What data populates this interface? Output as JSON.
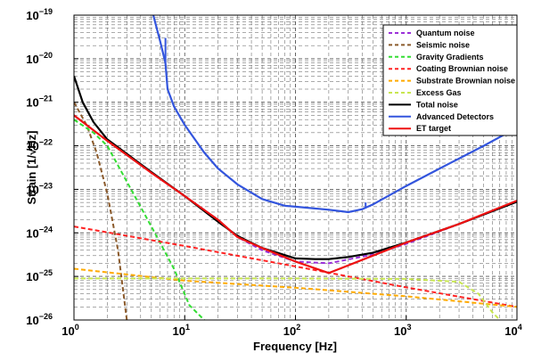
{
  "chart_data": {
    "type": "line",
    "title": "",
    "xlabel": "Frequency [Hz]",
    "ylabel": "Strain [1/√Hz]",
    "xscale": "log",
    "yscale": "log",
    "xlim": [
      1,
      10000
    ],
    "ylim": [
      1e-26,
      1e-19
    ],
    "grid": "major and minor, dashed",
    "legend_position": "top-right",
    "x_ticks": [
      {
        "base": "10",
        "exp": "0"
      },
      {
        "base": "10",
        "exp": "1"
      },
      {
        "base": "10",
        "exp": "2"
      },
      {
        "base": "10",
        "exp": "3"
      },
      {
        "base": "10",
        "exp": "4"
      }
    ],
    "y_ticks": [
      {
        "base": "10",
        "exp": "−26"
      },
      {
        "base": "10",
        "exp": "−25"
      },
      {
        "base": "10",
        "exp": "−24"
      },
      {
        "base": "10",
        "exp": "−23"
      },
      {
        "base": "10",
        "exp": "−22"
      },
      {
        "base": "10",
        "exp": "−21"
      },
      {
        "base": "10",
        "exp": "−20"
      },
      {
        "base": "10",
        "exp": "−19"
      }
    ],
    "series": [
      {
        "name": "Quantum noise",
        "color": "#9b30d9",
        "style": "dashed",
        "points": [
          [
            1,
            5e-22
          ],
          [
            2,
            1.3e-22
          ],
          [
            5,
            2.4e-23
          ],
          [
            10,
            7e-24
          ],
          [
            20,
            2e-24
          ],
          [
            30,
            8e-25
          ],
          [
            50,
            4e-25
          ],
          [
            100,
            2.2e-25
          ],
          [
            200,
            2e-25
          ],
          [
            500,
            3.2e-25
          ],
          [
            1000,
            5.6e-25
          ],
          [
            3000,
            1.6e-24
          ],
          [
            10000,
            5.2e-24
          ]
        ]
      },
      {
        "name": "Seismic noise",
        "color": "#8b5a2b",
        "style": "dashed",
        "points": [
          [
            1,
            1e-21
          ],
          [
            1.3,
            3e-22
          ],
          [
            1.6,
            7e-23
          ],
          [
            2,
            8e-24
          ],
          [
            2.5,
            4e-25
          ],
          [
            3,
            1e-26
          ]
        ]
      },
      {
        "name": "Gravity Gradients",
        "color": "#33dd33",
        "style": "dashed",
        "points": [
          [
            1,
            4e-22
          ],
          [
            1.5,
            2e-22
          ],
          [
            2,
            1e-22
          ],
          [
            3,
            1.5e-23
          ],
          [
            5,
            1.4e-24
          ],
          [
            8,
            1.5e-25
          ],
          [
            11,
            2.2e-26
          ],
          [
            15,
            1e-26
          ]
        ]
      },
      {
        "name": "Coating Brownian noise",
        "color": "#ff2222",
        "style": "dashed",
        "points": [
          [
            1,
            1.4e-24
          ],
          [
            10,
            5e-25
          ],
          [
            100,
            1.7e-25
          ],
          [
            1000,
            5.6e-26
          ],
          [
            10000,
            2e-26
          ]
        ]
      },
      {
        "name": "Substrate Brownian noise",
        "color": "#ffaa00",
        "style": "dashed",
        "points": [
          [
            1,
            1.5e-25
          ],
          [
            10,
            8e-26
          ],
          [
            100,
            5.5e-26
          ],
          [
            1000,
            3.5e-26
          ],
          [
            10000,
            2e-26
          ]
        ]
      },
      {
        "name": "Excess Gas",
        "color": "#c8e650",
        "style": "dashed",
        "points": [
          [
            1,
            9e-26
          ],
          [
            100,
            9e-26
          ],
          [
            1000,
            8.8e-26
          ],
          [
            3000,
            7.5e-26
          ],
          [
            4500,
            4e-26
          ],
          [
            6000,
            1.5e-26
          ],
          [
            7000,
            1e-26
          ]
        ]
      },
      {
        "name": "Total noise",
        "color": "#000000",
        "style": "solid",
        "points": [
          [
            1,
            4e-21
          ],
          [
            1.2,
            1e-21
          ],
          [
            1.5,
            3.5e-22
          ],
          [
            2,
            1.4e-22
          ],
          [
            5,
            2.5e-23
          ],
          [
            10,
            7e-24
          ],
          [
            20,
            1.8e-24
          ],
          [
            30,
            8.5e-25
          ],
          [
            50,
            4.5e-25
          ],
          [
            100,
            2.6e-25
          ],
          [
            150,
            2.5e-25
          ],
          [
            200,
            2.5e-25
          ],
          [
            300,
            2.8e-25
          ],
          [
            500,
            3.5e-25
          ],
          [
            1000,
            6e-25
          ],
          [
            3000,
            1.6e-24
          ],
          [
            10000,
            5.2e-24
          ]
        ]
      },
      {
        "name": "Advanced Detectors",
        "color": "#3355dd",
        "style": "solid",
        "points": [
          [
            5.2,
            1e-19
          ],
          [
            6,
            2.5e-20
          ],
          [
            6.7,
            8e-21
          ],
          [
            7,
            2e-21
          ],
          [
            8,
            8e-22
          ],
          [
            10,
            3e-22
          ],
          [
            15,
            7e-23
          ],
          [
            20,
            3e-23
          ],
          [
            30,
            1.3e-23
          ],
          [
            50,
            6e-24
          ],
          [
            80,
            4.2e-24
          ],
          [
            100,
            4e-24
          ],
          [
            200,
            3.4e-24
          ],
          [
            300,
            3e-24
          ],
          [
            400,
            3.5e-24
          ],
          [
            500,
            4.5e-24
          ],
          [
            1000,
            1.2e-23
          ],
          [
            2000,
            3e-23
          ],
          [
            5000,
            1e-22
          ],
          [
            10000,
            2.6e-22
          ]
        ]
      },
      {
        "name": "ET target",
        "color": "#ee1111",
        "style": "solid",
        "points": [
          [
            1,
            5e-22
          ],
          [
            2,
            1.3e-22
          ],
          [
            5,
            2.4e-23
          ],
          [
            10,
            7e-24
          ],
          [
            20,
            2e-24
          ],
          [
            30,
            8e-25
          ],
          [
            50,
            4.5e-25
          ],
          [
            100,
            2.2e-25
          ],
          [
            200,
            1.2e-25
          ],
          [
            500,
            3e-25
          ],
          [
            1000,
            6e-25
          ],
          [
            3000,
            1.6e-24
          ],
          [
            10000,
            5.5e-24
          ]
        ]
      }
    ],
    "spikes": [
      {
        "series": "Advanced Detectors",
        "x": 6.7,
        "y_top": 3e-20
      },
      {
        "series": "Advanced Detectors",
        "x": 430,
        "y_top": 5e-24
      }
    ]
  }
}
